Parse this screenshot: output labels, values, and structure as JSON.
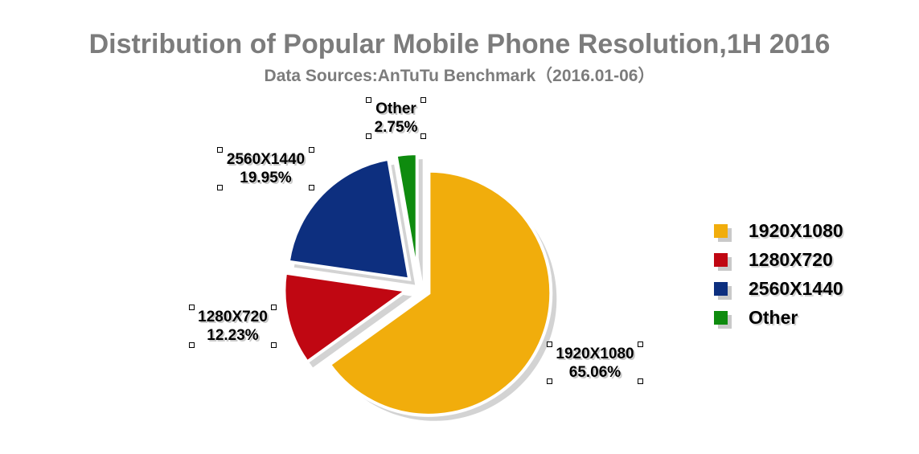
{
  "header": {
    "title": "Distribution of Popular Mobile Phone Resolution,1H 2016",
    "subtitle": "Data Sources:AnTuTu Benchmark（2016.01-06）",
    "title_color": "#7c7c7c"
  },
  "chart_data": {
    "type": "pie",
    "title": "Distribution of Popular Mobile Phone Resolution,1H 2016",
    "subtitle": "Data Sources:AnTuTu Benchmark（2016.01-06）",
    "start_angle_deg": 0,
    "direction": "clockwise",
    "exploded": true,
    "shadow": true,
    "legend_position": "right",
    "slices": [
      {
        "label": "1920X1080",
        "value": 65.06,
        "pct_label": "65.06%",
        "color": "#f1ad0c"
      },
      {
        "label": "1280X720",
        "value": 12.23,
        "pct_label": "12.23%",
        "color": "#c00712"
      },
      {
        "label": "2560X1440",
        "value": 19.95,
        "pct_label": "19.95%",
        "color": "#0d2f7f"
      },
      {
        "label": "Other",
        "value": 2.75,
        "pct_label": "2.75%",
        "color": "#0e8b0e"
      }
    ],
    "shadow_color": "#d3d3d3",
    "slice_outline_color": "#ffffff"
  }
}
